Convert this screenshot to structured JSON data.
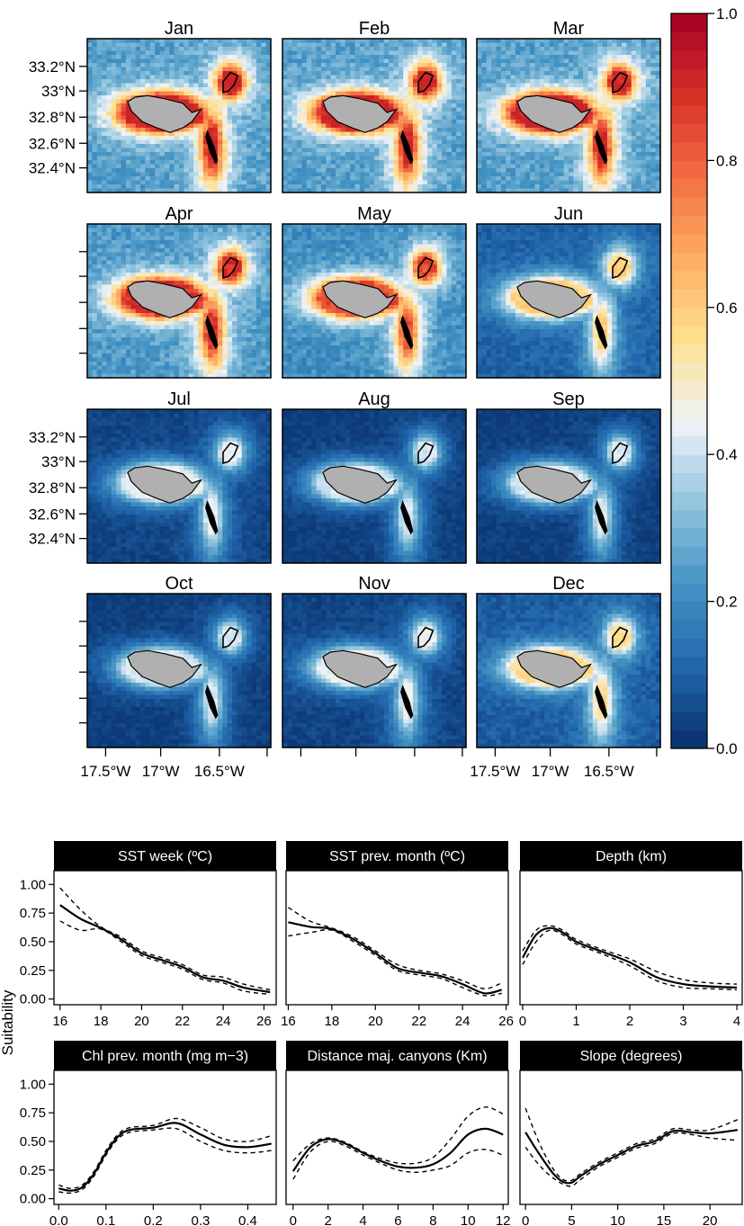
{
  "chart_data": [
    {
      "type": "heatmap",
      "panels": [
        "Jan",
        "Feb",
        "Mar",
        "Apr",
        "May",
        "Jun",
        "Jul",
        "Aug",
        "Sep",
        "Oct",
        "Nov",
        "Dec"
      ],
      "panel_mean_suitability": [
        0.36,
        0.36,
        0.36,
        0.34,
        0.3,
        0.15,
        0.06,
        0.04,
        0.04,
        0.04,
        0.06,
        0.13
      ],
      "lat_ticks": [
        "33.2°N",
        "33°N",
        "32.8°N",
        "32.6°N",
        "32.4°N"
      ],
      "lon_ticks": [
        "17.5°W",
        "17°W",
        "16.5°W"
      ],
      "colorbar": {
        "ticks": [
          "0.0",
          "0.2",
          "0.4",
          "0.6",
          "0.8",
          "1.0"
        ],
        "range": [
          0,
          1
        ],
        "colors": [
          "#08306b",
          "#2166ac",
          "#4393c3",
          "#92c5de",
          "#eff3f8",
          "#fee090",
          "#fdae61",
          "#f46d43",
          "#d73027",
          "#a50026"
        ]
      }
    },
    {
      "type": "line",
      "ylabel": "Suitability",
      "yticks": [
        "0.00",
        "0.25",
        "0.50",
        "0.75",
        "1.00"
      ],
      "ylim": [
        -0.05,
        1.12
      ],
      "panels": [
        {
          "title": "SST week (ºC)",
          "xlim": [
            15.7,
            26.6
          ],
          "xticks": [
            16,
            18,
            20,
            22,
            24,
            26
          ],
          "xtick_labels": [
            "16",
            "18",
            "20",
            "22",
            "24",
            "26"
          ],
          "x": [
            16,
            17,
            18,
            19,
            20,
            21,
            22,
            23,
            24,
            25,
            26.3
          ],
          "fit": [
            0.82,
            0.7,
            0.62,
            0.52,
            0.4,
            0.34,
            0.28,
            0.19,
            0.16,
            0.1,
            0.06
          ],
          "upper": [
            0.97,
            0.78,
            0.63,
            0.54,
            0.42,
            0.36,
            0.3,
            0.21,
            0.19,
            0.13,
            0.08
          ],
          "lower": [
            0.68,
            0.6,
            0.61,
            0.5,
            0.38,
            0.32,
            0.26,
            0.17,
            0.14,
            0.07,
            0.04
          ]
        },
        {
          "title": "SST prev. month (ºC)",
          "xlim": [
            15.9,
            26.1
          ],
          "xticks": [
            16,
            18,
            20,
            22,
            24,
            26
          ],
          "xtick_labels": [
            "16",
            "18",
            "20",
            "22",
            "24",
            "26"
          ],
          "x": [
            16,
            17,
            18,
            19,
            20,
            21,
            22,
            23,
            24,
            25,
            25.8
          ],
          "fit": [
            0.67,
            0.63,
            0.61,
            0.52,
            0.4,
            0.27,
            0.23,
            0.2,
            0.13,
            0.05,
            0.08
          ],
          "upper": [
            0.8,
            0.68,
            0.62,
            0.54,
            0.42,
            0.3,
            0.25,
            0.22,
            0.16,
            0.09,
            0.14
          ],
          "lower": [
            0.55,
            0.58,
            0.6,
            0.5,
            0.38,
            0.25,
            0.21,
            0.18,
            0.1,
            0.03,
            0.05
          ]
        },
        {
          "title": "Depth (km)",
          "xlim": [
            -0.05,
            4.1
          ],
          "xticks": [
            0,
            1,
            2,
            3,
            4
          ],
          "xtick_labels": [
            "0",
            "1",
            "2",
            "3",
            "4"
          ],
          "x": [
            0,
            0.25,
            0.5,
            0.75,
            1,
            1.5,
            2,
            2.5,
            3,
            3.5,
            4
          ],
          "fit": [
            0.36,
            0.56,
            0.62,
            0.58,
            0.5,
            0.41,
            0.32,
            0.19,
            0.13,
            0.11,
            0.1
          ],
          "upper": [
            0.42,
            0.6,
            0.64,
            0.6,
            0.52,
            0.43,
            0.35,
            0.24,
            0.17,
            0.14,
            0.13
          ],
          "lower": [
            0.3,
            0.5,
            0.6,
            0.56,
            0.48,
            0.39,
            0.29,
            0.16,
            0.1,
            0.09,
            0.08
          ]
        },
        {
          "title": "Chl prev. month (mg m−3)",
          "xlim": [
            -0.01,
            0.46
          ],
          "xticks": [
            0.0,
            0.1,
            0.2,
            0.3,
            0.4
          ],
          "xtick_labels": [
            "0.0",
            "0.1",
            "0.2",
            "0.3",
            "0.4"
          ],
          "x": [
            0,
            0.025,
            0.05,
            0.075,
            0.1,
            0.125,
            0.15,
            0.2,
            0.25,
            0.3,
            0.35,
            0.4,
            0.45
          ],
          "fit": [
            0.09,
            0.07,
            0.1,
            0.22,
            0.4,
            0.54,
            0.6,
            0.62,
            0.66,
            0.56,
            0.47,
            0.45,
            0.48
          ],
          "upper": [
            0.12,
            0.09,
            0.12,
            0.24,
            0.42,
            0.56,
            0.62,
            0.64,
            0.7,
            0.62,
            0.52,
            0.5,
            0.55
          ],
          "lower": [
            0.06,
            0.05,
            0.08,
            0.2,
            0.38,
            0.52,
            0.58,
            0.6,
            0.61,
            0.5,
            0.42,
            0.4,
            0.42
          ]
        },
        {
          "title": "Distance maj. canyons (Km)",
          "xlim": [
            -0.4,
            12.3
          ],
          "xticks": [
            0,
            2,
            4,
            6,
            8,
            10,
            12
          ],
          "xtick_labels": [
            "0",
            "2",
            "4",
            "6",
            "8",
            "10",
            "12"
          ],
          "x": [
            0,
            1,
            2,
            3,
            4,
            5,
            6,
            7,
            8,
            9,
            10,
            11,
            12
          ],
          "fit": [
            0.24,
            0.45,
            0.52,
            0.48,
            0.4,
            0.33,
            0.28,
            0.27,
            0.3,
            0.4,
            0.56,
            0.61,
            0.56
          ],
          "upper": [
            0.33,
            0.48,
            0.53,
            0.49,
            0.41,
            0.35,
            0.31,
            0.31,
            0.36,
            0.52,
            0.72,
            0.8,
            0.74
          ],
          "lower": [
            0.17,
            0.41,
            0.5,
            0.46,
            0.38,
            0.31,
            0.25,
            0.23,
            0.25,
            0.29,
            0.4,
            0.43,
            0.38
          ]
        },
        {
          "title": "Slope (degrees)",
          "xlim": [
            -0.6,
            23.5
          ],
          "xticks": [
            0,
            5,
            10,
            15,
            20
          ],
          "xtick_labels": [
            "0",
            "5",
            "10",
            "15",
            "20"
          ],
          "x": [
            0,
            1,
            2,
            3,
            4,
            5,
            6,
            8,
            10,
            12,
            14,
            16,
            18,
            20,
            23
          ],
          "fit": [
            0.58,
            0.45,
            0.33,
            0.22,
            0.15,
            0.14,
            0.2,
            0.3,
            0.38,
            0.46,
            0.5,
            0.59,
            0.58,
            0.57,
            0.6
          ],
          "upper": [
            0.79,
            0.58,
            0.4,
            0.26,
            0.17,
            0.16,
            0.22,
            0.32,
            0.4,
            0.48,
            0.52,
            0.61,
            0.6,
            0.6,
            0.69
          ],
          "lower": [
            0.45,
            0.34,
            0.25,
            0.18,
            0.13,
            0.11,
            0.17,
            0.28,
            0.36,
            0.44,
            0.48,
            0.57,
            0.56,
            0.53,
            0.51
          ]
        }
      ]
    }
  ]
}
